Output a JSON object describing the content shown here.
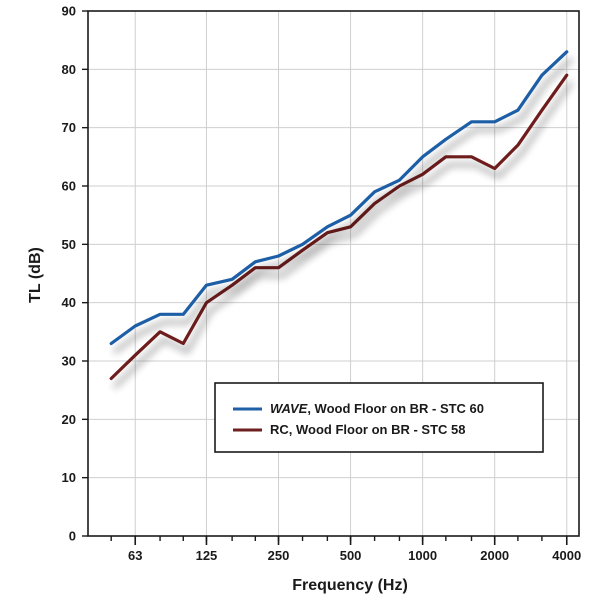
{
  "chart_data": {
    "type": "line",
    "xlabel": "Frequency (Hz)",
    "ylabel": "TL (dB)",
    "x_scale": "log",
    "xlim": [
      40,
      4500
    ],
    "ylim": [
      0,
      90
    ],
    "yticks": [
      0,
      10,
      20,
      30,
      40,
      50,
      60,
      70,
      80,
      90
    ],
    "xtick_labels": [
      "63",
      "125",
      "250",
      "500",
      "1000",
      "2000",
      "4000"
    ],
    "xticks": [
      63,
      125,
      250,
      500,
      1000,
      2000,
      4000
    ],
    "grid": true,
    "legend_position": "lower-right",
    "x": [
      50,
      63,
      80,
      100,
      125,
      160,
      200,
      250,
      315,
      400,
      500,
      630,
      800,
      1000,
      1250,
      1600,
      2000,
      2500,
      3150,
      4000
    ],
    "series": [
      {
        "name": "WAVE",
        "name_suffix": ", Wood Floor on BR - STC 60",
        "color": "#1f5fa6",
        "values": [
          33,
          36,
          38,
          38,
          43,
          44,
          47,
          48,
          50,
          53,
          55,
          59,
          61,
          65,
          68,
          71,
          71,
          73,
          79,
          83
        ]
      },
      {
        "name": "RC, Wood Floor on BR - STC 58",
        "color": "#6e1f1f",
        "values": [
          27,
          31,
          35,
          33,
          40,
          43,
          46,
          46,
          49,
          52,
          53,
          57,
          60,
          62,
          65,
          65,
          63,
          67,
          73,
          79
        ]
      }
    ]
  }
}
